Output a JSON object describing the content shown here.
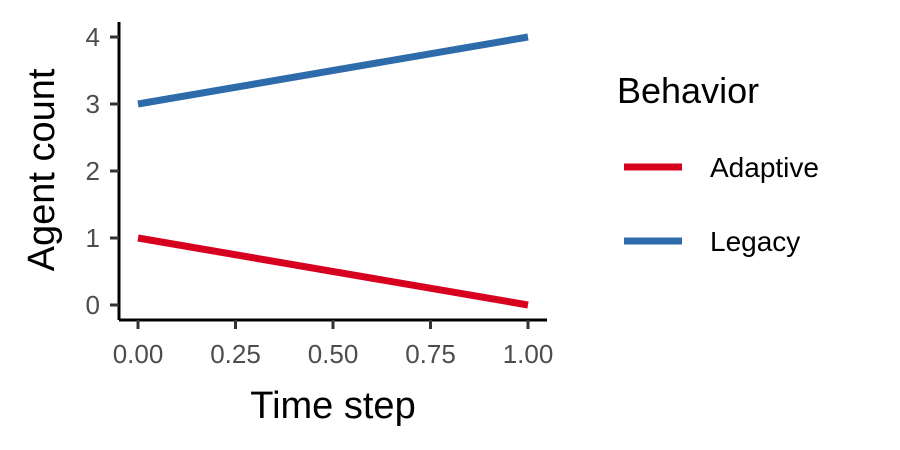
{
  "chart_data": {
    "type": "line",
    "title": "",
    "xlabel": "Time step",
    "ylabel": "Agent count",
    "xlim": [
      0,
      1
    ],
    "ylim": [
      0,
      4
    ],
    "x_ticks": [
      "0.00",
      "0.25",
      "0.50",
      "0.75",
      "1.00"
    ],
    "y_ticks": [
      "0",
      "1",
      "2",
      "3",
      "4"
    ],
    "grid": false,
    "legend": {
      "title": "Behavior",
      "position": "right"
    },
    "series": [
      {
        "name": "Adaptive",
        "color": "#d7001f",
        "x": [
          0,
          1
        ],
        "y": [
          1,
          0
        ]
      },
      {
        "name": "Legacy",
        "color": "#2e6bab",
        "x": [
          0,
          1
        ],
        "y": [
          3,
          4
        ]
      }
    ]
  }
}
